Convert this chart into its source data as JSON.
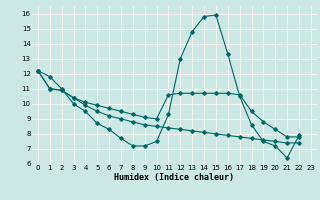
{
  "xlabel": "Humidex (Indice chaleur)",
  "bg_color": "#cce8e4",
  "line_color": "#006666",
  "grid_color": "#ffffff",
  "grid_minor_color": "#ddf0ec",
  "xlim": [
    -0.5,
    23.5
  ],
  "ylim": [
    6,
    16.5
  ],
  "xticks": [
    0,
    1,
    2,
    3,
    4,
    5,
    6,
    7,
    8,
    9,
    10,
    11,
    12,
    13,
    14,
    15,
    16,
    17,
    18,
    19,
    20,
    21,
    22,
    23
  ],
  "yticks": [
    6,
    7,
    8,
    9,
    10,
    11,
    12,
    13,
    14,
    15,
    16
  ],
  "series": [
    [
      12.2,
      11.8,
      11.0,
      10.0,
      9.5,
      8.7,
      8.3,
      7.7,
      7.2,
      7.2,
      7.5,
      9.3,
      13.0,
      14.8,
      15.8,
      15.9,
      13.3,
      10.5,
      8.6,
      7.5,
      7.2,
      6.4,
      7.9
    ],
    [
      12.2,
      11.0,
      10.9,
      10.4,
      9.9,
      9.5,
      9.2,
      9.0,
      8.8,
      8.6,
      8.5,
      8.4,
      8.3,
      8.2,
      8.1,
      8.0,
      7.9,
      7.8,
      7.7,
      7.6,
      7.5,
      7.4,
      7.4
    ],
    [
      12.2,
      11.0,
      10.9,
      10.4,
      10.1,
      9.9,
      9.7,
      9.5,
      9.3,
      9.1,
      9.0,
      10.6,
      10.7,
      10.7,
      10.7,
      10.7,
      10.7,
      10.6,
      9.5,
      8.8,
      8.3,
      7.8,
      7.8
    ]
  ],
  "x_values": [
    0,
    1,
    2,
    3,
    4,
    5,
    6,
    7,
    8,
    9,
    10,
    11,
    12,
    13,
    14,
    15,
    16,
    17,
    18,
    19,
    20,
    21,
    22
  ]
}
